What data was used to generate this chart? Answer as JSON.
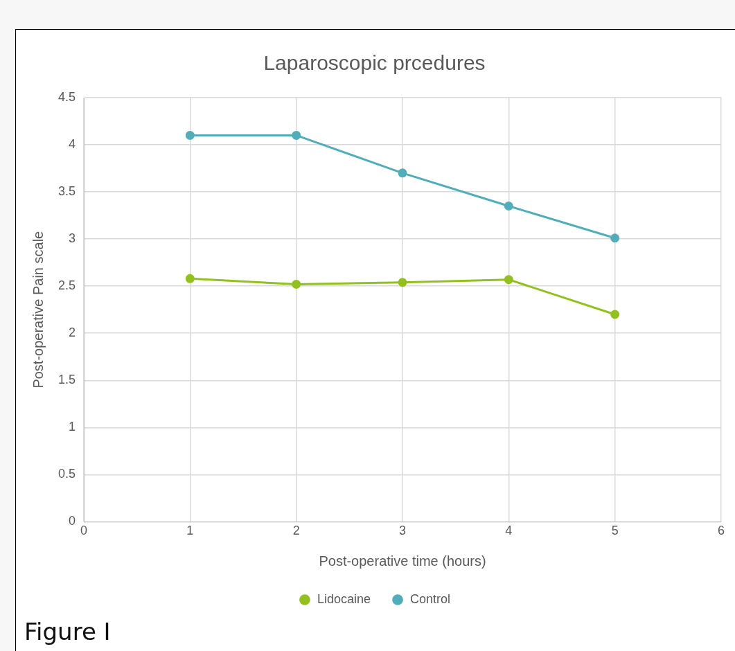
{
  "chart_data": {
    "type": "line",
    "title": "Laparoscopic prcedures",
    "xlabel": "Post-operative time (hours)",
    "ylabel": "Post-operative Pain scale",
    "x": [
      1,
      2,
      3,
      4,
      5
    ],
    "series": [
      {
        "name": "Lidocaine",
        "color": "#92c020",
        "values": [
          2.58,
          2.52,
          2.54,
          2.57,
          2.2
        ]
      },
      {
        "name": "Control",
        "color": "#52adbb",
        "values": [
          4.1,
          4.1,
          3.7,
          3.35,
          3.01
        ]
      }
    ],
    "xlim": [
      0,
      6
    ],
    "xticks": [
      0,
      1,
      2,
      3,
      4,
      5,
      6
    ],
    "ylim": [
      0,
      4.5
    ],
    "yticks": [
      0,
      0.5,
      1,
      1.5,
      2,
      2.5,
      3,
      3.5,
      4,
      4.5
    ],
    "grid": true,
    "legend": "bottom",
    "marker": "circle",
    "line_style": "solid",
    "annotations": [
      "Figure I"
    ]
  }
}
